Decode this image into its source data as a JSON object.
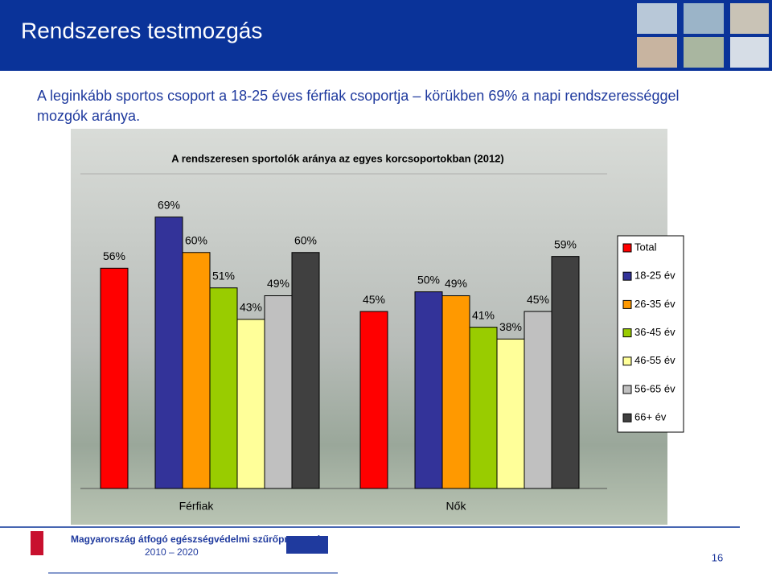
{
  "slide": {
    "title": "Rendszeres testmozgás",
    "lead": [
      "A leginkább sportos csoport a 18-25 éves férfiak csoportja – körükben 69% a napi rendszerességgel",
      "mozgók aránya."
    ],
    "footer_program": "Magyarország átfogó egészségvédelmi szűrőprogramja",
    "footer_years": "2010 – 2020",
    "page_number": "16"
  },
  "chart_data": {
    "type": "bar",
    "title": "A rendszeresen sportolók aránya az egyes korcsoportokban (2012)",
    "categories": [
      "Férfiak",
      "Nők"
    ],
    "ylim": [
      0,
      80
    ],
    "series": [
      {
        "name": "Total",
        "color": "#ff0000",
        "values": [
          56,
          45
        ],
        "value_labels": [
          "56%",
          "45%"
        ]
      },
      {
        "name": "18-25 év",
        "color": "#333399",
        "values": [
          69,
          50
        ],
        "value_labels": [
          "69%",
          "50%"
        ]
      },
      {
        "name": "26-35 év",
        "color": "#ff9900",
        "values": [
          60,
          49
        ],
        "value_labels": [
          "60%",
          "49%"
        ]
      },
      {
        "name": "36-45 év",
        "color": "#99cc00",
        "values": [
          51,
          41
        ],
        "value_labels": [
          "51%",
          "41%"
        ]
      },
      {
        "name": "46-55 év",
        "color": "#ffff99",
        "values": [
          43,
          38
        ],
        "value_labels": [
          "43%",
          "38%"
        ]
      },
      {
        "name": "56-65 év",
        "color": "#c0c0c0",
        "values": [
          49,
          45
        ],
        "value_labels": [
          "49%",
          "45%"
        ]
      },
      {
        "name": "66+ év",
        "color": "#404040",
        "values": [
          60,
          59
        ],
        "value_labels": [
          "60%",
          "59%"
        ]
      }
    ],
    "legend": "right"
  }
}
